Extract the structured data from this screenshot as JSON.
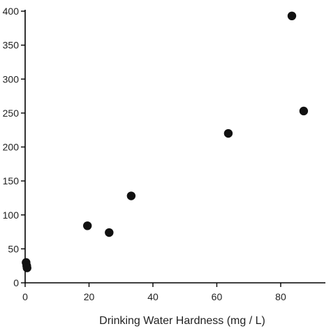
{
  "chart_data": {
    "type": "scatter",
    "title": "",
    "xlabel": "Drinking Water Hardness (mg / L)",
    "ylabel": "",
    "xlim": [
      0,
      94
    ],
    "ylim": [
      0,
      400
    ],
    "x_ticks": [
      0,
      20,
      40,
      60,
      80
    ],
    "y_ticks": [
      0,
      50,
      100,
      150,
      200,
      250,
      300,
      350,
      400
    ],
    "x_tick_labels": [
      "0",
      "20",
      "40",
      "60",
      "80"
    ],
    "y_tick_labels": [
      "0",
      "50",
      "100",
      "150",
      "200",
      "250",
      "300",
      "350",
      "400"
    ],
    "grid": false,
    "legend": "none",
    "point_color": "#111111",
    "series": [
      {
        "x": [
          0.3,
          0.5,
          0.6,
          19.5,
          26.3,
          33.2,
          63.6,
          83.5,
          87.2
        ],
        "y": [
          30,
          25,
          22,
          84,
          74,
          128,
          220,
          393,
          253
        ]
      }
    ]
  }
}
